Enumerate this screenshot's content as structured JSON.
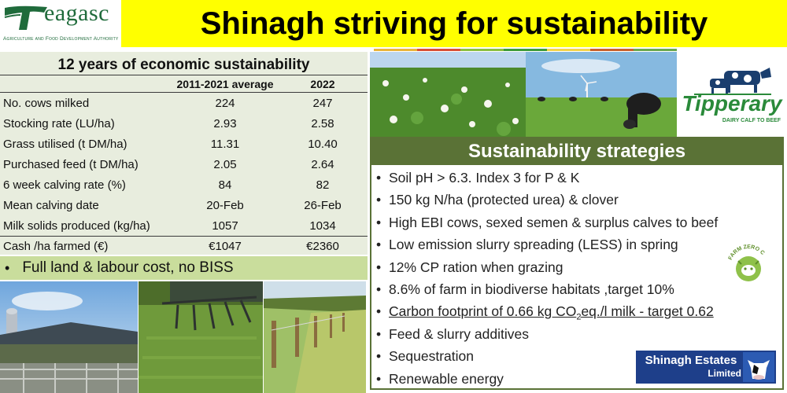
{
  "header": {
    "logo_word": "eagasc",
    "logo_sub": "Agriculture and Food Development Authority",
    "title": "Shinagh striving for sustainability"
  },
  "accent_colors": [
    "#e9b43a",
    "#d84f35",
    "#8bbf3f",
    "#3d9b3a",
    "#f3d34a",
    "#c8602c",
    "#6aa84f"
  ],
  "economic": {
    "title": "12 years of economic sustainability",
    "columns": [
      "2011-2021 average",
      "2022"
    ],
    "rows": [
      {
        "label": "No. cows milked",
        "avg": "224",
        "y2022": "247"
      },
      {
        "label": "Stocking rate (LU/ha)",
        "avg": "2.93",
        "y2022": "2.58"
      },
      {
        "label": "Grass utilised (t DM/ha)",
        "avg": "11.31",
        "y2022": "10.40"
      },
      {
        "label": "Purchased feed (t DM/ha)",
        "avg": "2.05",
        "y2022": "2.64"
      },
      {
        "label": "6 week calving rate (%)",
        "avg": "84",
        "y2022": "82"
      },
      {
        "label": "Mean calving date",
        "avg": "20-Feb",
        "y2022": "26-Feb"
      },
      {
        "label": "Milk solids produced (kg/ha)",
        "avg": "1057",
        "y2022": "1034"
      },
      {
        "label": "Cash /ha farmed (€)",
        "avg": "€1047",
        "y2022": "€2360"
      }
    ],
    "footnote": "Full land & labour cost,  no BISS"
  },
  "strategies": {
    "title": "Sustainability strategies",
    "items": [
      "Soil pH > 6.3. Index 3 for P & K",
      "150 kg N/ha (protected urea) & clover",
      "High EBI cows, sexed semen & surplus calves to beef",
      "Low emission slurry spreading (LESS) in spring",
      "12% CP ration when grazing",
      "8.6% of farm in biodiverse habitats ,target 10%",
      "Feed & slurry additives",
      "Sequestration",
      "Renewable energy"
    ],
    "carbon": {
      "pre": "Carbon footprint  of 0.66 kg CO",
      "sub": "2",
      "post": "eq./l milk - target 0.62"
    }
  },
  "logos": {
    "tipperary": "Tipperary",
    "tipperary_sub": "DAIRY CALF TO BEEF",
    "farm_zero": "FARM ZERO C",
    "shinagh_line1": "Shinagh Estates",
    "shinagh_line2": "Limited"
  },
  "photos": [
    "clover-field-photo",
    "cows-grazing-photo",
    "farmyard-shed-photo",
    "slurry-spreader-photo",
    "hedgerow-fence-photo"
  ]
}
